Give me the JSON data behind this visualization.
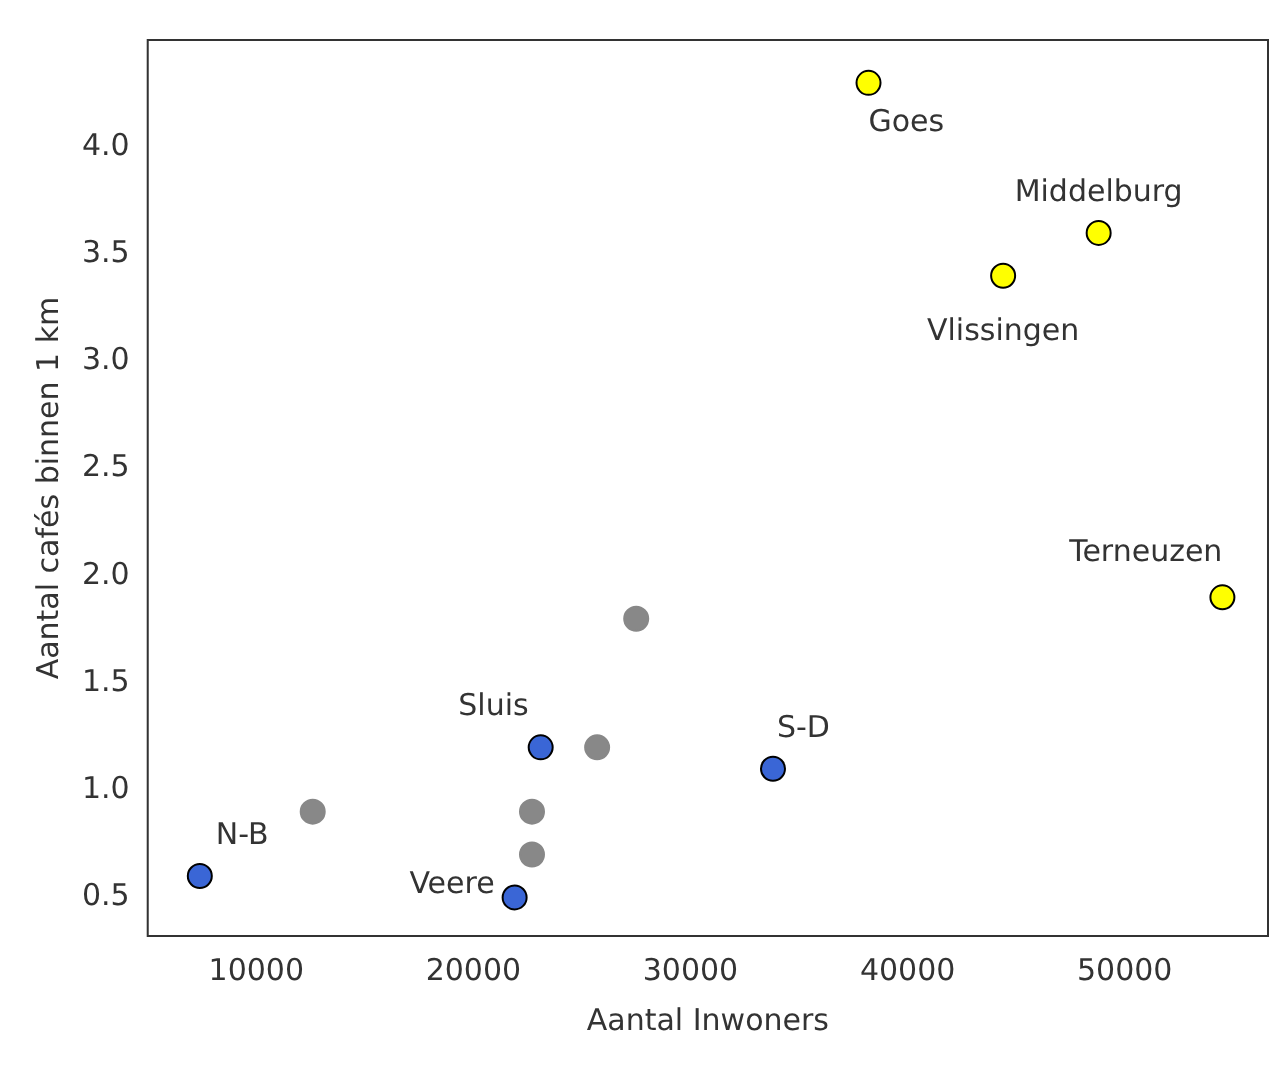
{
  "chart_data": {
    "type": "scatter",
    "xlabel": "Aantal Inwoners",
    "ylabel": "Aantal cafés binnen 1 km",
    "xlim": [
      5000,
      56600
    ],
    "ylim": [
      0.32,
      4.5
    ],
    "xticks": [
      10000,
      20000,
      30000,
      40000,
      50000
    ],
    "yticks": [
      0.5,
      {
        "value": 1,
        "label": "1.0"
      },
      1.5,
      {
        "value": 2,
        "label": "2.0"
      },
      2.5,
      {
        "value": 3,
        "label": "3.0"
      },
      3.5,
      {
        "value": 4,
        "label": "4.0"
      }
    ],
    "grid": false,
    "legend": false,
    "marker": "circle",
    "series": [
      {
        "color": "#ffff00",
        "x": [
          38200,
          48800,
          44400,
          54500
        ],
        "values": [
          4.3,
          3.6,
          3.4,
          1.9
        ]
      },
      {
        "color": "#3a66d6",
        "x": [
          33800,
          23100,
          21900,
          7400
        ],
        "values": [
          1.1,
          1.2,
          0.5,
          0.6
        ]
      },
      {
        "color": "#888888",
        "x": [
          12600,
          27500,
          25700,
          22700,
          22700
        ],
        "values": [
          0.9,
          1.8,
          1.2,
          0.9,
          0.7
        ]
      }
    ],
    "annotations": [
      {
        "text": "Goes",
        "x": 38200,
        "y": 4.3
      },
      {
        "text": "Middelburg",
        "x": 48800,
        "y": 3.6
      },
      {
        "text": "Vlissingen",
        "x": 44400,
        "y": 3.4
      },
      {
        "text": "Terneuzen",
        "x": 54500,
        "y": 1.9
      },
      {
        "text": "S-D",
        "x": 33800,
        "y": 1.1
      },
      {
        "text": "Sluis",
        "x": 23100,
        "y": 1.2
      },
      {
        "text": "Veere",
        "x": 21900,
        "y": 0.5
      },
      {
        "text": "N-B",
        "x": 7400,
        "y": 0.6
      }
    ]
  }
}
